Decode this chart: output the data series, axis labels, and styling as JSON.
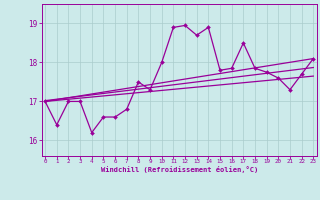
{
  "x": [
    0,
    1,
    2,
    3,
    4,
    5,
    6,
    7,
    8,
    9,
    10,
    11,
    12,
    13,
    14,
    15,
    16,
    17,
    18,
    19,
    20,
    21,
    22,
    23
  ],
  "y_line": [
    17.0,
    16.4,
    17.0,
    17.0,
    16.2,
    16.6,
    16.6,
    16.8,
    17.5,
    17.3,
    18.0,
    18.9,
    18.95,
    18.7,
    18.9,
    17.8,
    17.85,
    18.5,
    17.85,
    17.75,
    17.6,
    17.3,
    17.7,
    18.1
  ],
  "trend1_x": [
    0,
    23
  ],
  "trend1_y": [
    17.0,
    18.1
  ],
  "trend2_x": [
    0,
    23
  ],
  "trend2_y": [
    17.0,
    17.65
  ],
  "trend3_x": [
    0,
    23
  ],
  "trend3_y": [
    17.02,
    17.87
  ],
  "bg_color": "#cceaea",
  "grid_color": "#aacccc",
  "line_color": "#990099",
  "ylabel_vals": [
    16,
    17,
    18,
    19
  ],
  "xlabel_vals": [
    0,
    1,
    2,
    3,
    4,
    5,
    6,
    7,
    8,
    9,
    10,
    11,
    12,
    13,
    14,
    15,
    16,
    17,
    18,
    19,
    20,
    21,
    22,
    23
  ],
  "xlabel": "Windchill (Refroidissement éolien,°C)",
  "ylim": [
    15.6,
    19.5
  ],
  "xlim": [
    -0.3,
    23.3
  ]
}
